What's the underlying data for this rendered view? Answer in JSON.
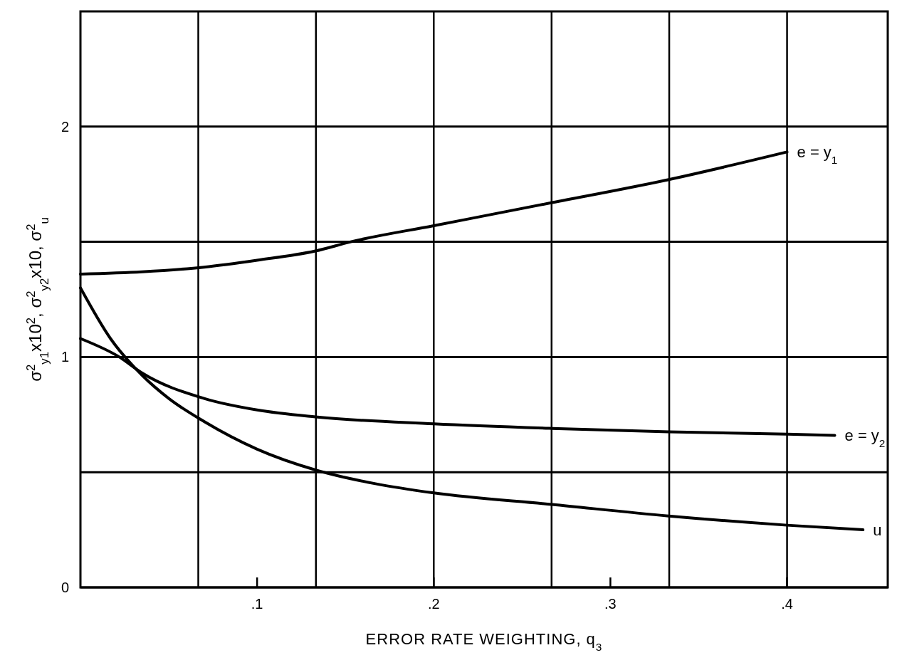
{
  "chart_data": {
    "type": "line",
    "xlabel": "ERROR RATE WEIGHTING, q$_{3}$",
    "ylabel": "σ$^{2}$$_{y1}$x10$^{2}$, σ$^{2}$$_{y2}$x10, σ$^{2}$$_{u}$",
    "xlim": [
      0,
      0.457
    ],
    "ylim": [
      0,
      2.5
    ],
    "xticks": [
      {
        "value": 0.1,
        "label": ".1"
      },
      {
        "value": 0.2,
        "label": ".2"
      },
      {
        "value": 0.3,
        "label": ".3"
      },
      {
        "value": 0.4,
        "label": ".4"
      }
    ],
    "yticks": [
      0,
      {
        "value": 0.5,
        "label": null
      },
      1,
      {
        "value": 1.5,
        "label": null
      },
      2
    ],
    "grid": "y",
    "marker": "none",
    "line_style": "solid",
    "ref_lines": [
      {
        "axis": "x",
        "value": 0.0667,
        "label": null
      },
      {
        "axis": "x",
        "value": 0.1333,
        "label": null
      },
      {
        "axis": "x",
        "value": 0.2,
        "label": null
      },
      {
        "axis": "x",
        "value": 0.2667,
        "label": null
      },
      {
        "axis": "x",
        "value": 0.3333,
        "label": null
      },
      {
        "axis": "x",
        "value": 0.4,
        "label": null
      }
    ],
    "series": [
      {
        "name": "e = y$_{1}$",
        "color": "#000000",
        "x": [
          0,
          0.035,
          0.07,
          0.1,
          0.133,
          0.153,
          0.2,
          0.267,
          0.333,
          0.4
        ],
        "values": [
          1.36,
          1.37,
          1.39,
          1.42,
          1.46,
          1.5,
          1.57,
          1.67,
          1.77,
          1.89
        ]
      },
      {
        "name": "e = y$_{2}$",
        "color": "#000000",
        "x": [
          0,
          0.022,
          0.035,
          0.07,
          0.1,
          0.133,
          0.2,
          0.267,
          0.333,
          0.4,
          0.427
        ],
        "values": [
          1.08,
          1.0,
          0.93,
          0.82,
          0.77,
          0.74,
          0.71,
          0.69,
          0.675,
          0.665,
          0.66
        ]
      },
      {
        "name": "u",
        "color": "#000000",
        "x": [
          0,
          0.017,
          0.035,
          0.05,
          0.07,
          0.1,
          0.133,
          0.167,
          0.2,
          0.267,
          0.333,
          0.4,
          0.443
        ],
        "values": [
          1.3,
          1.08,
          0.92,
          0.82,
          0.72,
          0.6,
          0.51,
          0.45,
          0.41,
          0.36,
          0.31,
          0.27,
          0.25
        ]
      }
    ]
  }
}
